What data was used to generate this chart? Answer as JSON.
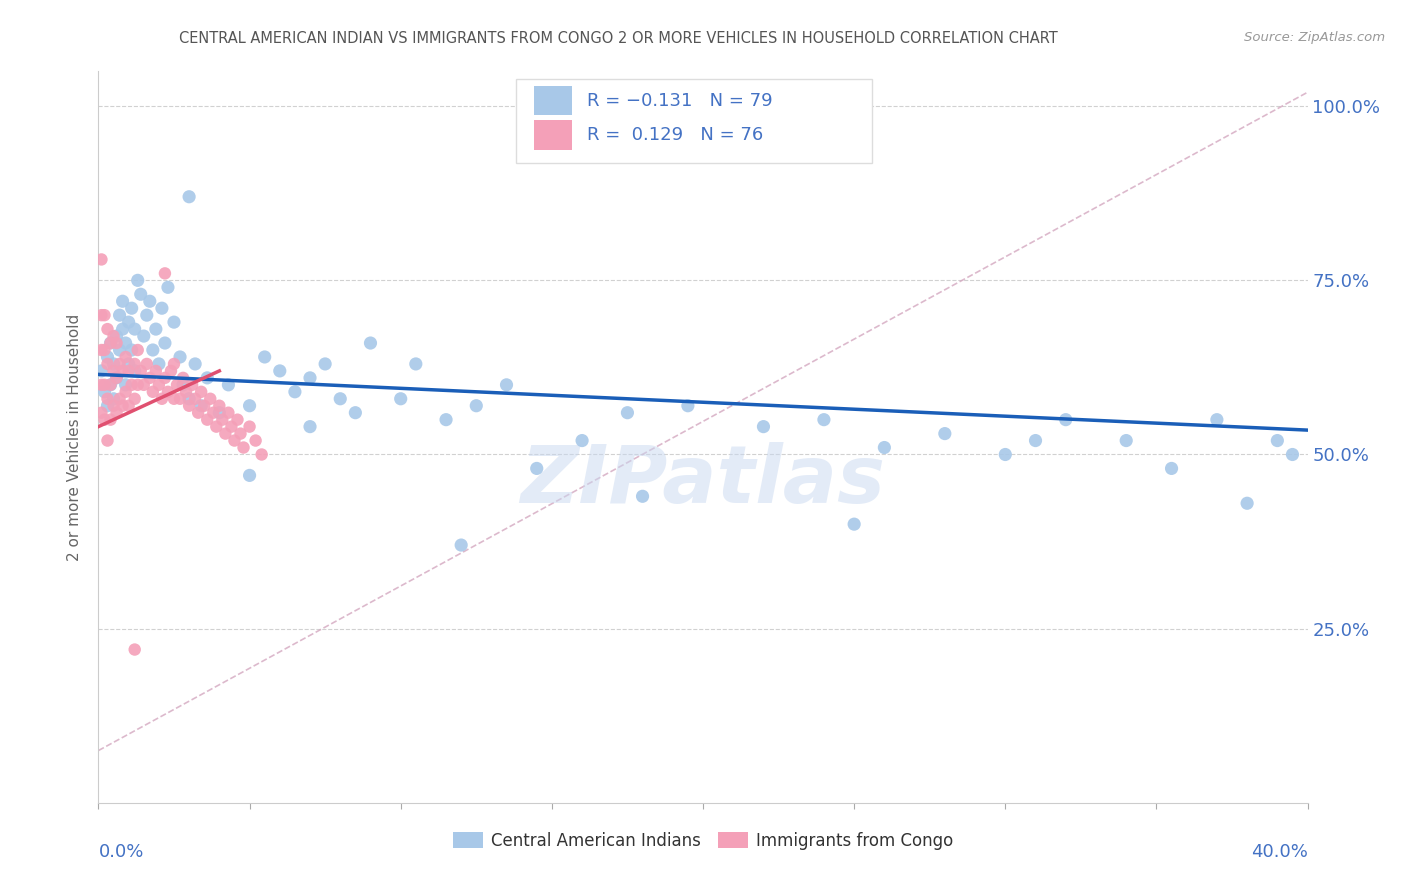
{
  "title": "CENTRAL AMERICAN INDIAN VS IMMIGRANTS FROM CONGO 2 OR MORE VEHICLES IN HOUSEHOLD CORRELATION CHART",
  "source": "Source: ZipAtlas.com",
  "ylabel": "2 or more Vehicles in Household",
  "ylabel_ticks": [
    "25.0%",
    "50.0%",
    "75.0%",
    "100.0%"
  ],
  "ylabel_tick_vals": [
    0.25,
    0.5,
    0.75,
    1.0
  ],
  "xlim": [
    0.0,
    0.4
  ],
  "ylim": [
    0.0,
    1.05
  ],
  "blue_color": "#a8c8e8",
  "pink_color": "#f4a0b8",
  "blue_line_color": "#1a5eb8",
  "pink_line_color": "#e05070",
  "dashed_line_color": "#d4a8c0",
  "axis_color": "#4472c4",
  "watermark": "ZIPatlas",
  "watermark_color": "#c8d8f0",
  "R_blue": -0.131,
  "N_blue": 79,
  "R_pink": 0.129,
  "N_pink": 76,
  "blue_line_x0": 0.0,
  "blue_line_y0": 0.615,
  "blue_line_x1": 0.4,
  "blue_line_y1": 0.535,
  "pink_line_x0": 0.0,
  "pink_line_y0": 0.54,
  "pink_line_x1": 0.04,
  "pink_line_y1": 0.62,
  "dash_line_x0": 0.0,
  "dash_line_y0": 0.075,
  "dash_line_x1": 0.4,
  "dash_line_y1": 1.02,
  "blue_pts_x": [
    0.001,
    0.002,
    0.003,
    0.003,
    0.004,
    0.004,
    0.005,
    0.005,
    0.006,
    0.006,
    0.007,
    0.007,
    0.008,
    0.008,
    0.009,
    0.009,
    0.01,
    0.01,
    0.011,
    0.011,
    0.012,
    0.012,
    0.013,
    0.014,
    0.015,
    0.016,
    0.017,
    0.018,
    0.019,
    0.02,
    0.021,
    0.022,
    0.023,
    0.025,
    0.027,
    0.028,
    0.03,
    0.032,
    0.034,
    0.036,
    0.04,
    0.043,
    0.05,
    0.055,
    0.06,
    0.065,
    0.07,
    0.075,
    0.08,
    0.085,
    0.09,
    0.1,
    0.105,
    0.115,
    0.125,
    0.135,
    0.145,
    0.16,
    0.175,
    0.195,
    0.22,
    0.24,
    0.26,
    0.28,
    0.3,
    0.31,
    0.32,
    0.34,
    0.355,
    0.37,
    0.38,
    0.39,
    0.395,
    0.03,
    0.05,
    0.07,
    0.12,
    0.18,
    0.25
  ],
  "blue_pts_y": [
    0.62,
    0.59,
    0.57,
    0.64,
    0.6,
    0.66,
    0.58,
    0.63,
    0.61,
    0.67,
    0.65,
    0.7,
    0.68,
    0.72,
    0.66,
    0.6,
    0.63,
    0.69,
    0.71,
    0.65,
    0.68,
    0.62,
    0.75,
    0.73,
    0.67,
    0.7,
    0.72,
    0.65,
    0.68,
    0.63,
    0.71,
    0.66,
    0.74,
    0.69,
    0.64,
    0.6,
    0.58,
    0.63,
    0.57,
    0.61,
    0.56,
    0.6,
    0.57,
    0.64,
    0.62,
    0.59,
    0.61,
    0.63,
    0.58,
    0.56,
    0.66,
    0.58,
    0.63,
    0.55,
    0.57,
    0.6,
    0.48,
    0.52,
    0.56,
    0.57,
    0.54,
    0.55,
    0.51,
    0.53,
    0.5,
    0.52,
    0.55,
    0.52,
    0.48,
    0.55,
    0.43,
    0.52,
    0.5,
    0.87,
    0.47,
    0.54,
    0.37,
    0.44,
    0.4
  ],
  "pink_pts_x": [
    0.001,
    0.001,
    0.001,
    0.001,
    0.001,
    0.002,
    0.002,
    0.002,
    0.002,
    0.003,
    0.003,
    0.003,
    0.003,
    0.004,
    0.004,
    0.004,
    0.005,
    0.005,
    0.005,
    0.006,
    0.006,
    0.006,
    0.007,
    0.007,
    0.008,
    0.008,
    0.009,
    0.009,
    0.01,
    0.01,
    0.011,
    0.012,
    0.012,
    0.013,
    0.013,
    0.014,
    0.015,
    0.016,
    0.017,
    0.018,
    0.019,
    0.02,
    0.021,
    0.022,
    0.023,
    0.024,
    0.025,
    0.025,
    0.026,
    0.027,
    0.028,
    0.029,
    0.03,
    0.031,
    0.032,
    0.033,
    0.034,
    0.035,
    0.036,
    0.037,
    0.038,
    0.039,
    0.04,
    0.041,
    0.042,
    0.043,
    0.044,
    0.045,
    0.046,
    0.047,
    0.048,
    0.05,
    0.052,
    0.054,
    0.012,
    0.022
  ],
  "pink_pts_y": [
    0.56,
    0.6,
    0.65,
    0.7,
    0.78,
    0.55,
    0.6,
    0.65,
    0.7,
    0.52,
    0.58,
    0.63,
    0.68,
    0.55,
    0.6,
    0.66,
    0.57,
    0.62,
    0.67,
    0.56,
    0.61,
    0.66,
    0.58,
    0.63,
    0.57,
    0.62,
    0.59,
    0.64,
    0.57,
    0.62,
    0.6,
    0.58,
    0.63,
    0.6,
    0.65,
    0.62,
    0.6,
    0.63,
    0.61,
    0.59,
    0.62,
    0.6,
    0.58,
    0.61,
    0.59,
    0.62,
    0.58,
    0.63,
    0.6,
    0.58,
    0.61,
    0.59,
    0.57,
    0.6,
    0.58,
    0.56,
    0.59,
    0.57,
    0.55,
    0.58,
    0.56,
    0.54,
    0.57,
    0.55,
    0.53,
    0.56,
    0.54,
    0.52,
    0.55,
    0.53,
    0.51,
    0.54,
    0.52,
    0.5,
    0.22,
    0.76
  ]
}
